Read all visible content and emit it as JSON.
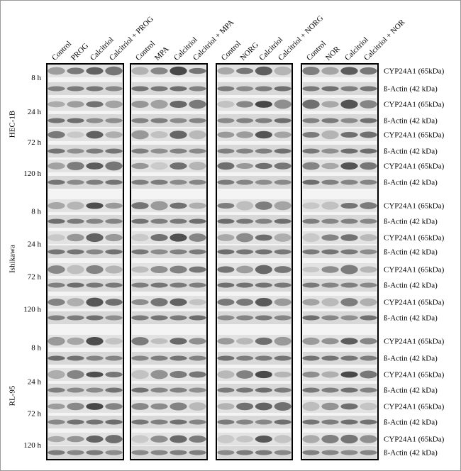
{
  "panels": [
    {
      "columns": [
        "Control",
        "PROG",
        "Calcitriol",
        "Calcitriol + PROG"
      ]
    },
    {
      "columns": [
        "Control",
        "MPA",
        "Calcitriol",
        "Calcitriol + MPA"
      ]
    },
    {
      "columns": [
        "Control",
        "NORG",
        "Calcitriol",
        "Calcitriol + NORG"
      ]
    },
    {
      "columns": [
        "Control",
        "NOR",
        "Calcitriol",
        "Calcitriol + NOR"
      ]
    }
  ],
  "cell_lines": [
    {
      "name": "HEC-1B",
      "times": [
        "8 h",
        "24 h",
        "72 h",
        "120 h"
      ]
    },
    {
      "name": "Ishikawa",
      "times": [
        "8 h",
        "24 h",
        "72 h",
        "120 h"
      ]
    },
    {
      "name": "RL-95",
      "times": [
        "8 h",
        "24 h",
        "72 h",
        "120 h"
      ]
    }
  ],
  "row_labels": [
    "CYP24A1 (65kDa)",
    "ß-Actin (42 kDa)",
    "CYP24A1 (65kDa)",
    "ß-Actin (42 kDa)",
    "CYP24A1 (65kDa)",
    "ß-Actin (42 kDa)",
    "CYP24A1 (65kDa)",
    "ß-Actin (42 kDa)",
    "CYP24A1 (65kDa)",
    "ß-Actin (42 kDa)",
    "CYP24A1 (65kDa)",
    "ß-Actin (42 kDa)",
    "CYP24A1 (65kDa)",
    "ß-Actin (42 kDa)",
    "CYP24A1 (65kDa)",
    "ß-Actin (42 kDa)",
    "CYP24A1 (65kDa)",
    "ß-Actin (42 kDa)",
    "CYP24A1 (65kDa)",
    "ß-Actin (42 kDa)",
    "CYP24A1 (65kDa)",
    "ß-Actin (42 kDa)",
    "CYP24A1 (65kDa)",
    "ß-Actin (42 kDa)"
  ]
}
